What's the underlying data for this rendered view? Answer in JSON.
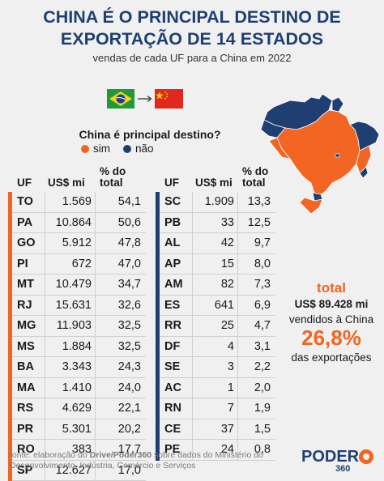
{
  "title_line1": "CHINA É O PRINCIPAL DESTINO DE",
  "title_line2": "EXPORTAÇÃO DE 14 ESTADOS",
  "subtitle": "vendas de cada UF para a China em 2022",
  "legend": {
    "question": "China é principal destino?",
    "yes_label": "sim",
    "no_label": "não",
    "yes_color": "#f26522",
    "no_color": "#1f3f73"
  },
  "headers": {
    "uf": "UF",
    "usd": "US$ mi",
    "pct_line1": "% do",
    "pct_line2": "total"
  },
  "chart_data": {
    "type": "table",
    "columns": [
      "UF",
      "US$ mi",
      "% do total"
    ],
    "rows_yes": [
      {
        "uf": "TO",
        "usd": "1.569",
        "pct": "54,1"
      },
      {
        "uf": "PA",
        "usd": "10.864",
        "pct": "50,6"
      },
      {
        "uf": "GO",
        "usd": "5.912",
        "pct": "47,8"
      },
      {
        "uf": "PI",
        "usd": "672",
        "pct": "47,0"
      },
      {
        "uf": "MT",
        "usd": "10.479",
        "pct": "34,7"
      },
      {
        "uf": "RJ",
        "usd": "15.631",
        "pct": "32,6"
      },
      {
        "uf": "MG",
        "usd": "11.903",
        "pct": "32,5"
      },
      {
        "uf": "MS",
        "usd": "1.884",
        "pct": "32,5"
      },
      {
        "uf": "BA",
        "usd": "3.343",
        "pct": "24,3"
      },
      {
        "uf": "MA",
        "usd": "1.410",
        "pct": "24,0"
      },
      {
        "uf": "RS",
        "usd": "4.629",
        "pct": "22,1"
      },
      {
        "uf": "PR",
        "usd": "5.301",
        "pct": "20,2"
      },
      {
        "uf": "RO",
        "usd": "383",
        "pct": "17,7"
      },
      {
        "uf": "SP",
        "usd": "12.627",
        "pct": "17,0"
      }
    ],
    "rows_no": [
      {
        "uf": "SC",
        "usd": "1.909",
        "pct": "13,3"
      },
      {
        "uf": "PB",
        "usd": "33",
        "pct": "12,5"
      },
      {
        "uf": "AL",
        "usd": "42",
        "pct": "9,7"
      },
      {
        "uf": "AP",
        "usd": "15",
        "pct": "8,0"
      },
      {
        "uf": "AM",
        "usd": "82",
        "pct": "7,3"
      },
      {
        "uf": "ES",
        "usd": "641",
        "pct": "6,9"
      },
      {
        "uf": "RR",
        "usd": "25",
        "pct": "4,7"
      },
      {
        "uf": "DF",
        "usd": "4",
        "pct": "3,1"
      },
      {
        "uf": "SE",
        "usd": "3",
        "pct": "2,2"
      },
      {
        "uf": "AC",
        "usd": "1",
        "pct": "2,0"
      },
      {
        "uf": "RN",
        "usd": "7",
        "pct": "1,9"
      },
      {
        "uf": "CE",
        "usd": "37",
        "pct": "1,5"
      },
      {
        "uf": "PE",
        "usd": "24",
        "pct": "0,8"
      }
    ]
  },
  "total": {
    "label": "total",
    "amount": "US$ 89.428 mi",
    "sold_text": "vendidos à China",
    "share": "26,8%",
    "exports_text": "das exportações"
  },
  "footer": {
    "prefix": "fonte: elaboração do ",
    "source": "Drive/Poder360",
    "suffix": " sobre dados do Ministério do Desenvolvimento, Indústria, Comércio e Serviços"
  },
  "logo": {
    "name": "PODER",
    "number": "360"
  }
}
